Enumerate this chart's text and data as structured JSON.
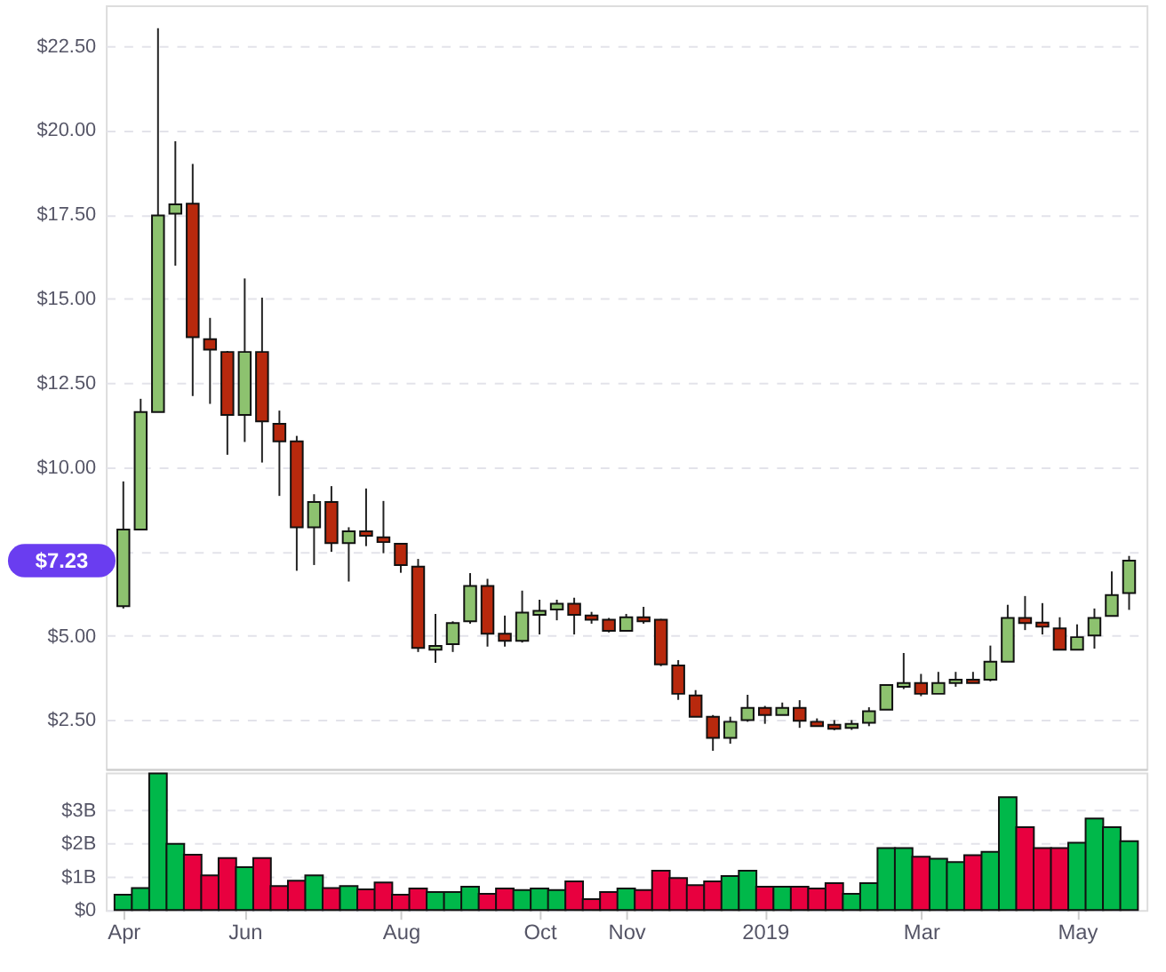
{
  "chart_data": [
    {
      "type": "candlestick",
      "ohlc": [
        [
          5.88,
          9.58,
          5.81,
          8.15
        ],
        [
          8.15,
          12.03,
          8.15,
          11.64
        ],
        [
          11.64,
          23.02,
          11.64,
          17.47
        ],
        [
          17.52,
          19.67,
          15.98,
          17.8
        ],
        [
          17.82,
          19.0,
          12.11,
          13.86
        ],
        [
          13.8,
          14.43,
          11.88,
          13.49
        ],
        [
          13.42,
          13.45,
          10.37,
          11.55
        ],
        [
          11.55,
          15.6,
          10.75,
          13.42
        ],
        [
          13.42,
          15.03,
          10.14,
          11.36
        ],
        [
          11.29,
          11.68,
          9.15,
          10.77
        ],
        [
          10.77,
          10.93,
          6.93,
          8.22
        ],
        [
          8.22,
          9.2,
          7.1,
          8.97
        ],
        [
          8.97,
          9.44,
          7.49,
          7.75
        ],
        [
          7.75,
          8.22,
          6.61,
          8.1
        ],
        [
          8.1,
          9.37,
          7.66,
          7.97
        ],
        [
          7.92,
          9.0,
          7.45,
          7.78
        ],
        [
          7.73,
          7.73,
          6.87,
          7.1
        ],
        [
          7.05,
          7.28,
          4.52,
          4.64
        ],
        [
          4.59,
          5.65,
          4.2,
          4.7
        ],
        [
          4.75,
          5.43,
          4.52,
          5.38
        ],
        [
          5.43,
          6.86,
          5.36,
          6.48
        ],
        [
          6.48,
          6.69,
          4.68,
          5.06
        ],
        [
          5.06,
          5.6,
          4.68,
          4.85
        ],
        [
          4.85,
          6.34,
          4.8,
          5.69
        ],
        [
          5.62,
          6.07,
          5.04,
          5.74
        ],
        [
          5.78,
          6.07,
          5.46,
          5.95
        ],
        [
          5.95,
          6.13,
          5.04,
          5.62
        ],
        [
          5.6,
          5.71,
          5.36,
          5.48
        ],
        [
          5.48,
          5.53,
          5.1,
          5.15
        ],
        [
          5.15,
          5.65,
          5.15,
          5.55
        ],
        [
          5.55,
          5.86,
          5.36,
          5.43
        ],
        [
          5.48,
          5.5,
          4.1,
          4.15
        ],
        [
          4.12,
          4.28,
          3.1,
          3.28
        ],
        [
          3.23,
          3.39,
          2.6,
          2.6
        ],
        [
          2.6,
          2.65,
          1.59,
          1.97
        ],
        [
          1.97,
          2.6,
          1.8,
          2.45
        ],
        [
          2.5,
          3.25,
          2.45,
          2.86
        ],
        [
          2.86,
          2.92,
          2.39,
          2.65
        ],
        [
          2.65,
          3.02,
          2.65,
          2.86
        ],
        [
          2.86,
          3.09,
          2.27,
          2.48
        ],
        [
          2.45,
          2.55,
          2.32,
          2.32
        ],
        [
          2.36,
          2.5,
          2.2,
          2.24
        ],
        [
          2.27,
          2.5,
          2.21,
          2.39
        ],
        [
          2.42,
          2.88,
          2.32,
          2.76
        ],
        [
          2.81,
          3.54,
          2.81,
          3.54
        ],
        [
          3.49,
          4.49,
          3.42,
          3.6
        ],
        [
          3.6,
          3.87,
          3.21,
          3.28
        ],
        [
          3.28,
          3.93,
          3.28,
          3.6
        ],
        [
          3.6,
          3.93,
          3.49,
          3.7
        ],
        [
          3.7,
          3.93,
          3.6,
          3.6
        ],
        [
          3.7,
          4.71,
          3.65,
          4.23
        ],
        [
          4.23,
          5.92,
          4.23,
          5.53
        ],
        [
          5.53,
          6.18,
          5.17,
          5.38
        ],
        [
          5.39,
          5.97,
          5.04,
          5.27
        ],
        [
          5.22,
          5.55,
          4.59,
          4.59
        ],
        [
          4.59,
          5.34,
          4.59,
          4.96
        ],
        [
          5.01,
          5.81,
          4.62,
          5.53
        ],
        [
          5.59,
          6.91,
          5.59,
          6.21
        ],
        [
          6.27,
          7.37,
          5.77,
          7.23
        ]
      ],
      "colors": [
        "#8dc26f",
        "#8dc26f",
        "#8dc26f",
        "#8dc26f",
        "#b8290d",
        "#b8290d",
        "#b8290d",
        "#8dc26f",
        "#b8290d",
        "#b8290d",
        "#b8290d",
        "#8dc26f",
        "#b8290d",
        "#8dc26f",
        "#b8290d",
        "#b8290d",
        "#b8290d",
        "#b8290d",
        "#8dc26f",
        "#8dc26f",
        "#8dc26f",
        "#b8290d",
        "#b8290d",
        "#8dc26f",
        "#8dc26f",
        "#8dc26f",
        "#b8290d",
        "#b8290d",
        "#b8290d",
        "#8dc26f",
        "#b8290d",
        "#b8290d",
        "#b8290d",
        "#b8290d",
        "#b8290d",
        "#8dc26f",
        "#8dc26f",
        "#b8290d",
        "#8dc26f",
        "#b8290d",
        "#b8290d",
        "#b8290d",
        "#8dc26f",
        "#8dc26f",
        "#8dc26f",
        "#8dc26f",
        "#b8290d",
        "#8dc26f",
        "#8dc26f",
        "#b8290d",
        "#8dc26f",
        "#8dc26f",
        "#b8290d",
        "#b8290d",
        "#b8290d",
        "#8dc26f",
        "#8dc26f",
        "#8dc26f",
        "#8dc26f"
      ],
      "ylim": [
        1.05,
        23.7
      ],
      "yticks": [
        {
          "value": 2.5,
          "label": "$2.50"
        },
        {
          "value": 5,
          "label": "$5.00"
        },
        {
          "value": 7.5,
          "label": null
        },
        {
          "value": 10,
          "label": "$10.00"
        },
        {
          "value": 12.5,
          "label": "$12.50"
        },
        {
          "value": 15,
          "label": "$15.00"
        },
        {
          "value": 17.5,
          "label": "$17.50"
        },
        {
          "value": 20,
          "label": "$20.00"
        },
        {
          "value": 22.5,
          "label": "$22.50"
        }
      ],
      "grid": "y",
      "tick_labels": "y",
      "annotations": [
        "$7.23"
      ]
    },
    {
      "type": "bar",
      "categories": [
        "Apr",
        null,
        null,
        null,
        null,
        null,
        null,
        "Jun",
        null,
        null,
        null,
        null,
        null,
        null,
        null,
        null,
        "Aug",
        null,
        null,
        null,
        null,
        null,
        null,
        null,
        "Oct",
        null,
        null,
        null,
        null,
        "Nov",
        null,
        null,
        null,
        null,
        null,
        null,
        null,
        "2019",
        null,
        null,
        null,
        null,
        null,
        null,
        null,
        null,
        "Mar",
        null,
        null,
        null,
        null,
        null,
        null,
        null,
        null,
        "May",
        null,
        null,
        null
      ],
      "values": [
        0.46,
        0.66,
        4.1,
        1.99,
        1.66,
        1.04,
        1.56,
        1.29,
        1.56,
        0.72,
        0.88,
        1.04,
        0.66,
        0.72,
        0.62,
        0.83,
        0.46,
        0.65,
        0.54,
        0.54,
        0.7,
        0.49,
        0.65,
        0.6,
        0.65,
        0.6,
        0.86,
        0.33,
        0.54,
        0.65,
        0.6,
        1.18,
        0.96,
        0.75,
        0.86,
        1.02,
        1.18,
        0.7,
        0.7,
        0.7,
        0.65,
        0.81,
        0.49,
        0.81,
        1.86,
        1.86,
        1.6,
        1.54,
        1.44,
        1.65,
        1.75,
        3.39,
        2.49,
        1.86,
        1.86,
        2.02,
        2.75,
        2.49,
        2.07
      ],
      "colors": [
        "#00b84a",
        "#00b84a",
        "#00b84a",
        "#00b84a",
        "#e8003f",
        "#e8003f",
        "#e8003f",
        "#00b84a",
        "#e8003f",
        "#e8003f",
        "#e8003f",
        "#00b84a",
        "#e8003f",
        "#00b84a",
        "#e8003f",
        "#e8003f",
        "#e8003f",
        "#e8003f",
        "#00b84a",
        "#00b84a",
        "#00b84a",
        "#e8003f",
        "#e8003f",
        "#00b84a",
        "#00b84a",
        "#00b84a",
        "#e8003f",
        "#e8003f",
        "#e8003f",
        "#00b84a",
        "#e8003f",
        "#e8003f",
        "#e8003f",
        "#e8003f",
        "#e8003f",
        "#00b84a",
        "#00b84a",
        "#e8003f",
        "#00b84a",
        "#e8003f",
        "#e8003f",
        "#e8003f",
        "#00b84a",
        "#00b84a",
        "#00b84a",
        "#00b84a",
        "#e8003f",
        "#00b84a",
        "#00b84a",
        "#e8003f",
        "#00b84a",
        "#00b84a",
        "#e8003f",
        "#e8003f",
        "#e8003f",
        "#00b84a",
        "#00b84a",
        "#00b84a",
        "#00b84a"
      ],
      "ylim": [
        0,
        4.13
      ],
      "yticks": [
        {
          "value": 0,
          "label": "$0"
        },
        {
          "value": 1,
          "label": "$1B"
        },
        {
          "value": 2,
          "label": "$2B"
        },
        {
          "value": 3,
          "label": "$3B"
        }
      ],
      "grid": "y"
    }
  ]
}
